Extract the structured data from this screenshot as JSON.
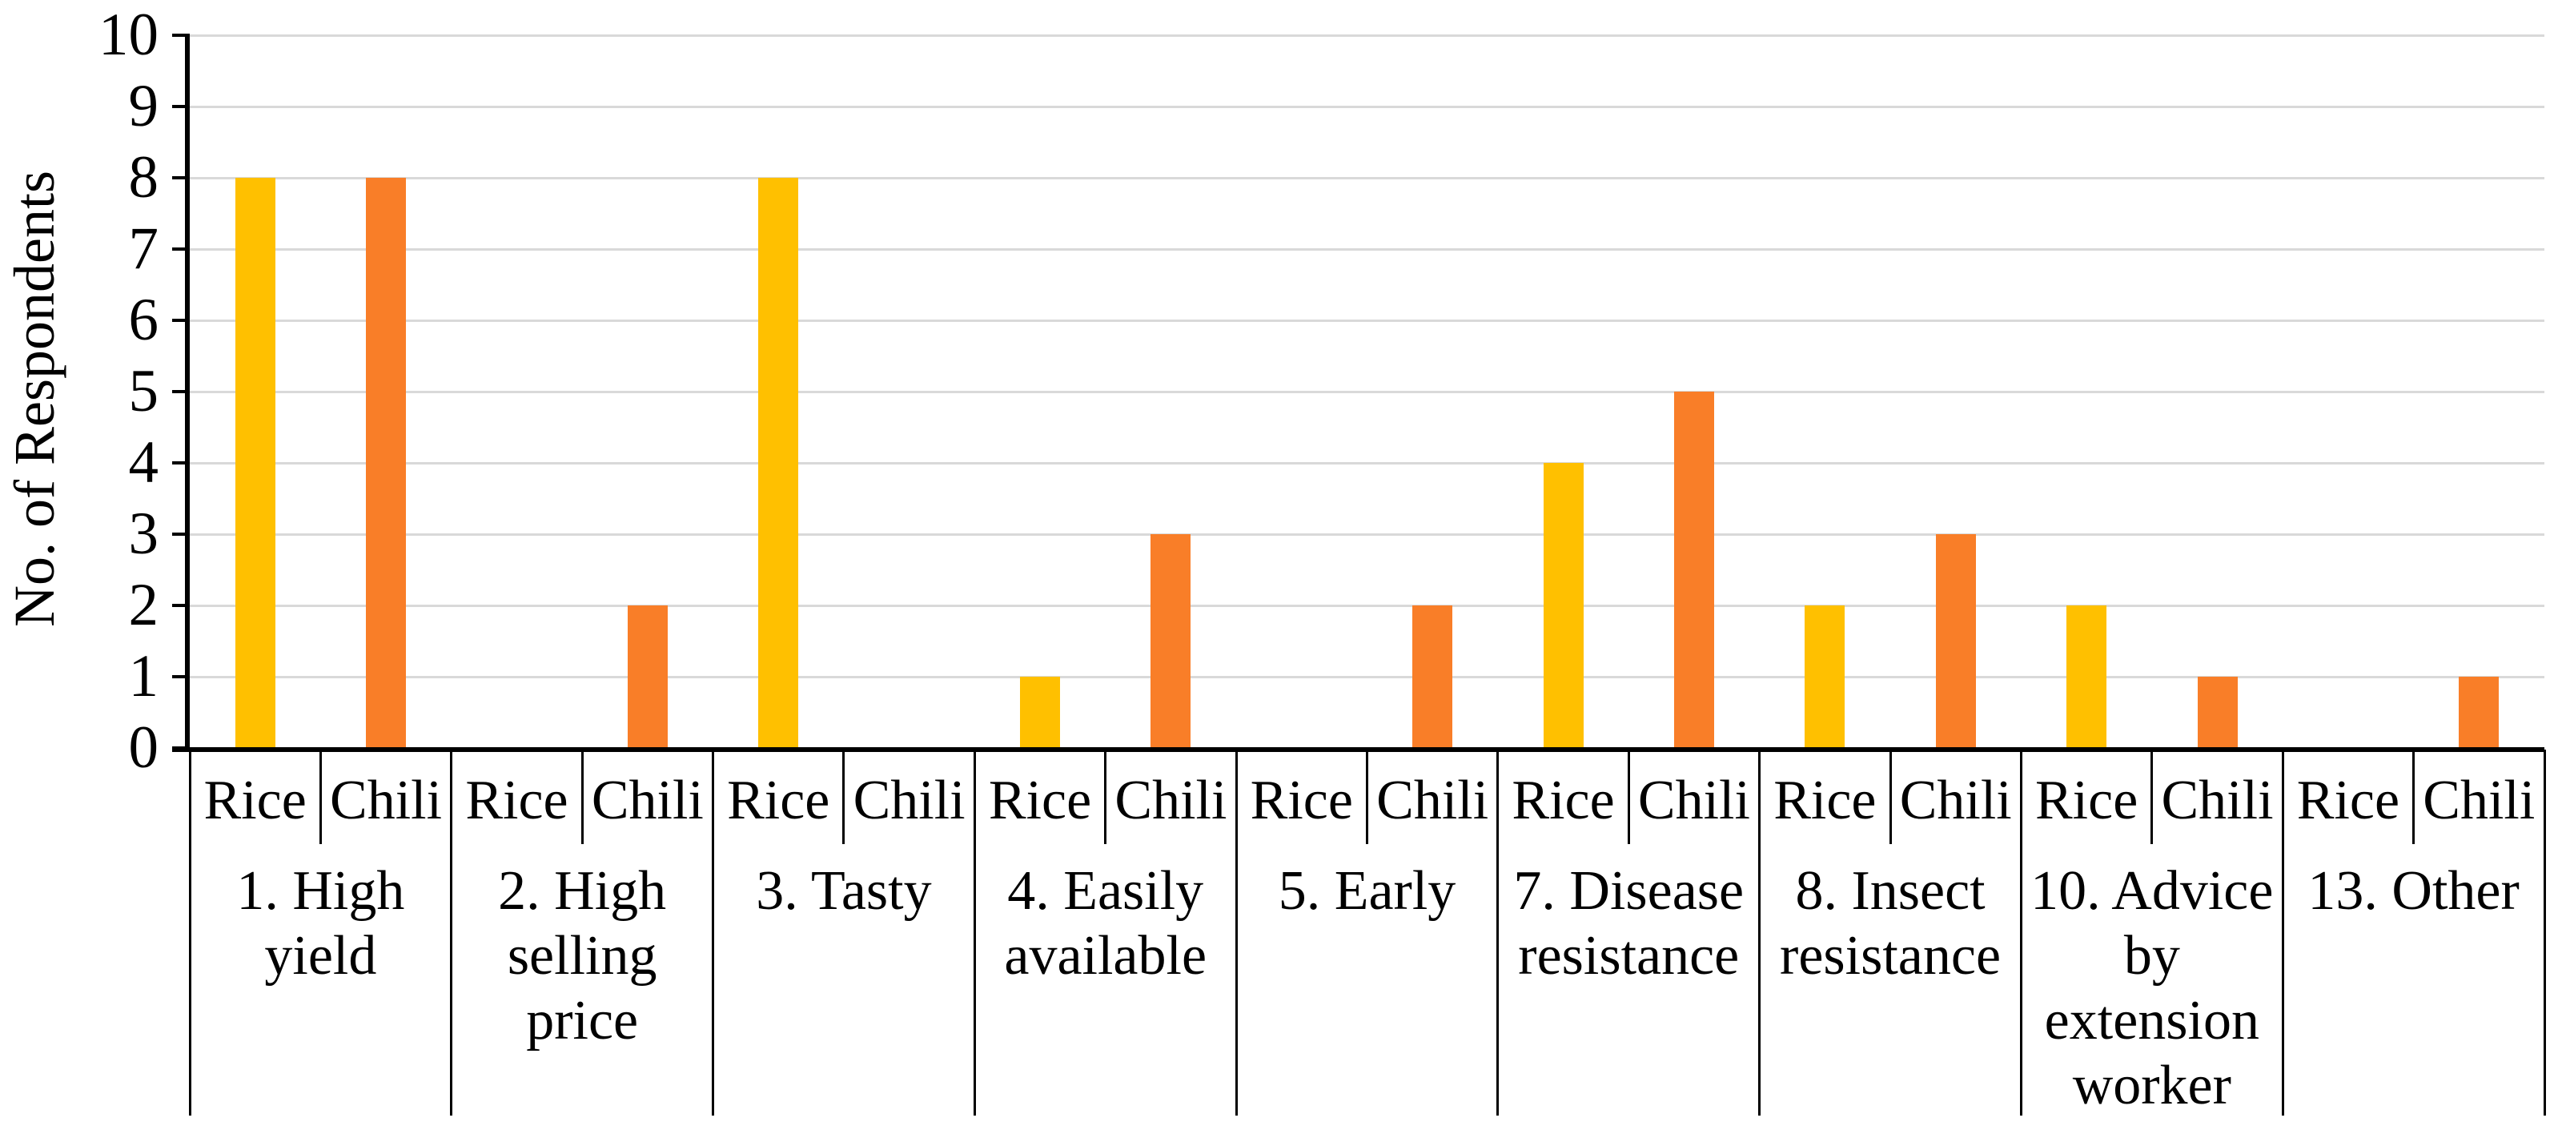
{
  "chart_data": {
    "type": "bar",
    "title": "",
    "xlabel": "",
    "ylabel": "No. of Respondents",
    "ylim": [
      0,
      10
    ],
    "ytick_step": 1,
    "grid": true,
    "legend_position": "none",
    "categories": [
      "1. High yield",
      "2. High selling price",
      "3. Tasty",
      "4. Easily available",
      "5. Early",
      "7. Disease resistance",
      "8. Insect resistance",
      "10. Advice by extension worker",
      "13. Other"
    ],
    "categories_display": [
      "1. High\nyield",
      "2. High\nselling\nprice",
      "3. Tasty",
      "4. Easily\navailable",
      "5. Early",
      "7. Disease\nresistance",
      "8. Insect\nresistance",
      "10. Advice\nby\nextension\nworker",
      "13. Other"
    ],
    "series": [
      {
        "name": "Rice",
        "color": "#FFC000",
        "values": [
          8,
          0,
          8,
          1,
          0,
          4,
          2,
          2,
          0
        ]
      },
      {
        "name": "Chili",
        "color": "#F97E28",
        "values": [
          8,
          2,
          0,
          3,
          2,
          5,
          3,
          1,
          1
        ]
      }
    ],
    "colors": {
      "background": "#FFFFFF",
      "gridline": "#D9D9D9",
      "axis": "#000000",
      "text": "#000000"
    }
  }
}
